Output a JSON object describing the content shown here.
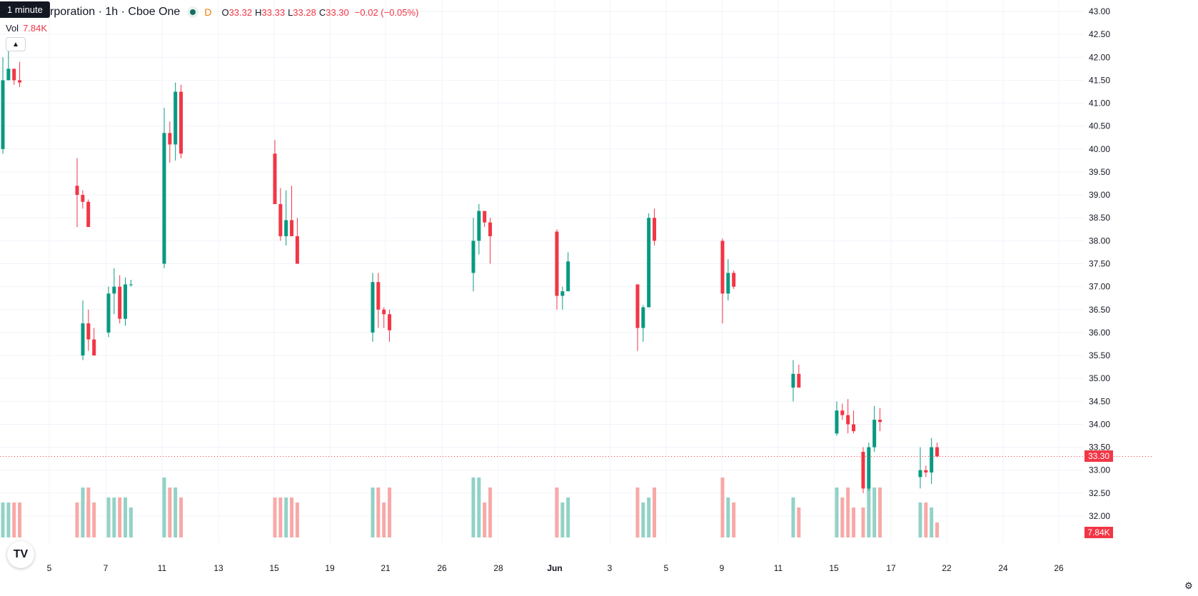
{
  "header": {
    "tooltip": "1 minute",
    "title": "rporation · 1h · Cboe One",
    "badge": "D",
    "open_label": "O",
    "open": "33.32",
    "high_label": "H",
    "high": "33.33",
    "low_label": "L",
    "low": "33.28",
    "close_label": "C",
    "close": "33.30",
    "change": "−0.02 (−0.05%)"
  },
  "volume": {
    "label": "Vol",
    "value": "7.84K"
  },
  "controls": {
    "collapse_icon": "chevron-up-icon",
    "logo_icon": "tradingview-logo-icon",
    "logo_text": "TV",
    "settings_icon": "gear-icon"
  },
  "price_tag": {
    "last_price": "33.30",
    "last_volume": "7.84K"
  },
  "colors": {
    "up": "#089981",
    "down": "#f23645",
    "up_vol": "#92d2c7",
    "down_vol": "#f7a9a7",
    "grid": "#f0f3fa"
  },
  "chart_data": {
    "type": "candlestick",
    "y_axis": {
      "range": [
        31.8,
        43.05
      ],
      "ticks": [
        "43.00",
        "42.50",
        "42.00",
        "41.50",
        "41.00",
        "40.50",
        "40.00",
        "39.50",
        "39.00",
        "38.50",
        "38.00",
        "37.50",
        "37.00",
        "36.50",
        "36.00",
        "35.50",
        "35.00",
        "34.50",
        "34.00",
        "33.50",
        "33.00",
        "32.50",
        "32.00"
      ]
    },
    "x_axis": {
      "ticks": [
        "5",
        "7",
        "11",
        "13",
        "15",
        "19",
        "21",
        "26",
        "28",
        "Jun",
        "3",
        "5",
        "9",
        "11",
        "15",
        "17",
        "22",
        "24",
        "26"
      ]
    },
    "grid": true,
    "segments": [
      {
        "start_x": 5,
        "bar_width": 4.6,
        "sessions": [
          [
            40.0,
            42.0,
            39.9,
            41.5,
            7,
            41.5,
            42.15,
            41.5,
            41.75,
            7,
            41.75,
            41.75,
            41.4,
            41.5,
            7,
            41.5,
            41.9,
            41.35,
            41.45,
            7
          ],
          [
            39.2,
            39.8,
            38.3,
            39.0,
            7,
            39.0,
            39.1,
            38.7,
            38.85,
            7,
            38.85,
            38.9,
            38.5,
            38.3,
            7
          ],
          [
            35.5,
            36.7,
            35.4,
            36.2,
            10,
            36.2,
            36.5,
            35.6,
            35.85,
            10,
            35.85,
            36.1,
            35.6,
            35.5,
            7
          ],
          [
            36.0,
            37.0,
            35.9,
            36.85,
            8,
            36.85,
            37.4,
            36.4,
            37.0,
            8,
            37.0,
            37.25,
            36.2,
            36.3,
            8,
            36.3,
            37.2,
            36.15,
            37.05,
            8,
            37.05,
            37.15,
            37.0,
            37.05,
            6
          ],
          [
            37.5,
            40.9,
            37.4,
            40.35,
            12,
            40.35,
            40.6,
            39.7,
            40.1,
            10,
            40.1,
            41.45,
            39.75,
            41.25,
            10,
            41.25,
            41.4,
            39.8,
            39.9,
            8
          ],
          [
            39.9,
            40.2,
            38.8,
            38.8,
            8,
            38.8,
            39.15,
            38.0,
            38.1,
            8,
            38.1,
            39.1,
            37.9,
            38.45,
            8,
            38.45,
            39.2,
            38.2,
            38.1,
            8,
            38.1,
            38.5,
            37.5,
            37.5,
            7
          ],
          [
            36.0,
            37.3,
            35.8,
            37.1,
            10,
            37.1,
            37.3,
            36.1,
            36.5,
            10,
            36.5,
            36.55,
            36.1,
            36.4,
            7,
            36.4,
            36.5,
            35.8,
            36.05,
            10
          ],
          [
            37.3,
            38.5,
            36.9,
            38.0,
            12,
            38.0,
            38.8,
            37.7,
            38.65,
            12,
            38.65,
            38.65,
            38.3,
            38.4,
            7,
            38.4,
            38.5,
            37.5,
            38.1,
            10
          ],
          [
            38.2,
            38.25,
            36.5,
            36.8,
            10,
            36.8,
            37.0,
            36.5,
            36.9,
            7,
            36.9,
            37.75,
            36.9,
            37.55,
            8
          ],
          [
            37.05,
            37.0,
            35.6,
            36.1,
            10,
            36.1,
            36.6,
            35.8,
            36.55,
            7,
            36.55,
            38.6,
            37.0,
            38.5,
            8,
            38.5,
            38.7,
            37.9,
            38.0,
            10
          ],
          [
            38.0,
            38.05,
            36.2,
            36.85,
            12,
            36.85,
            37.6,
            36.7,
            37.3,
            8,
            37.3,
            37.35,
            36.95,
            37.0,
            7
          ],
          [
            34.8,
            35.4,
            34.5,
            35.1,
            8,
            35.1,
            35.3,
            34.9,
            34.8,
            6
          ],
          [
            33.8,
            34.5,
            33.75,
            34.3,
            10,
            34.3,
            34.45,
            34.1,
            34.2,
            8,
            34.2,
            34.55,
            33.8,
            34.0,
            10,
            34.0,
            34.3,
            33.8,
            33.85,
            6
          ],
          [
            33.4,
            33.5,
            32.5,
            32.6,
            6,
            32.6,
            33.6,
            32.55,
            33.5,
            10,
            33.5,
            34.4,
            33.4,
            34.1,
            10,
            34.1,
            34.35,
            33.85,
            34.05,
            10
          ],
          [
            32.85,
            33.5,
            32.6,
            33.0,
            7,
            33.0,
            33.1,
            32.85,
            32.95,
            7,
            32.95,
            33.7,
            32.7,
            33.5,
            6,
            33.5,
            33.6,
            33.28,
            33.3,
            3
          ]
        ]
      }
    ]
  }
}
